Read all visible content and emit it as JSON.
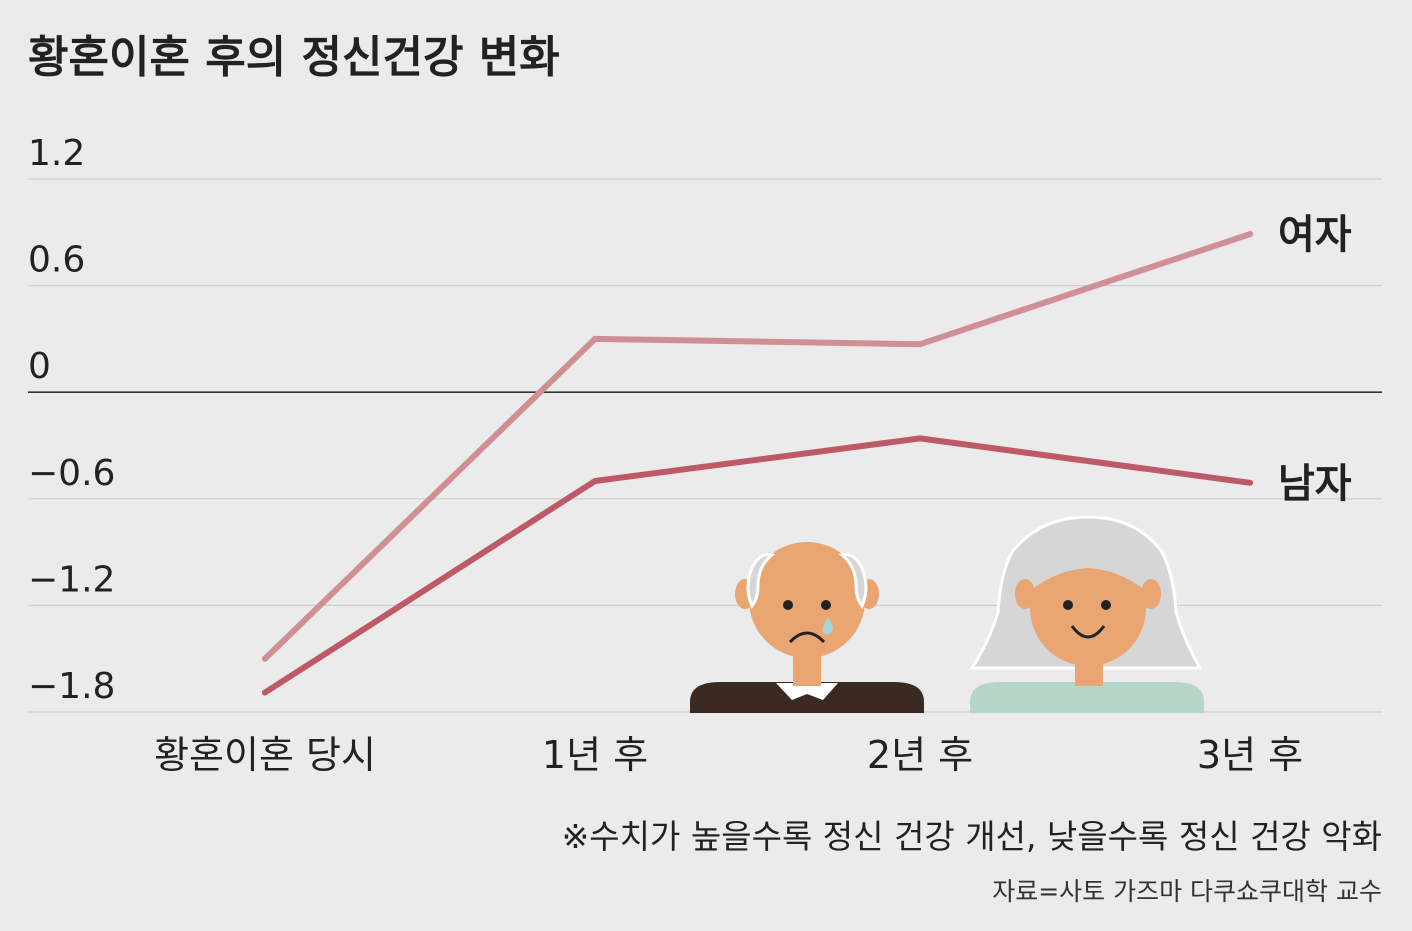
{
  "chart_data": {
    "type": "line",
    "title": "황혼이혼 후의 정신건강 변화",
    "categories": [
      "황혼이혼 당시",
      "1년 후",
      "2년 후",
      "3년 후"
    ],
    "yticks": [
      "1.2",
      "0.6",
      "0",
      "−0.6",
      "−1.2",
      "−1.8"
    ],
    "ytick_values": [
      1.2,
      0.6,
      0,
      -0.6,
      -1.2,
      -1.8
    ],
    "ylim": [
      -1.8,
      1.2
    ],
    "grid": true,
    "zero_line": true,
    "series": [
      {
        "name": "여자",
        "values": [
          -1.5,
          0.3,
          0.27,
          0.89
        ],
        "color": "#cf8f93"
      },
      {
        "name": "남자",
        "values": [
          -1.69,
          -0.5,
          -0.26,
          -0.51
        ],
        "color": "#be5a67"
      }
    ],
    "note": "※수치가 높을수록 정신 건강 개선, 낮을수록 정신 건강 악화",
    "source": "자료=사토 가즈마 다쿠쇼쿠대학 교수"
  },
  "illustrations": [
    {
      "name": "elderly-man-sad-icon"
    },
    {
      "name": "elderly-woman-happy-icon"
    }
  ],
  "colors": {
    "background": "#ebebeb",
    "grid": "#d0d0d0",
    "zero_line": "#333333",
    "skin": "#e9a672",
    "man_shirt": "#3a2a22",
    "woman_shirt": "#b6d6ca",
    "woman_hair": "#d6d6d6"
  }
}
